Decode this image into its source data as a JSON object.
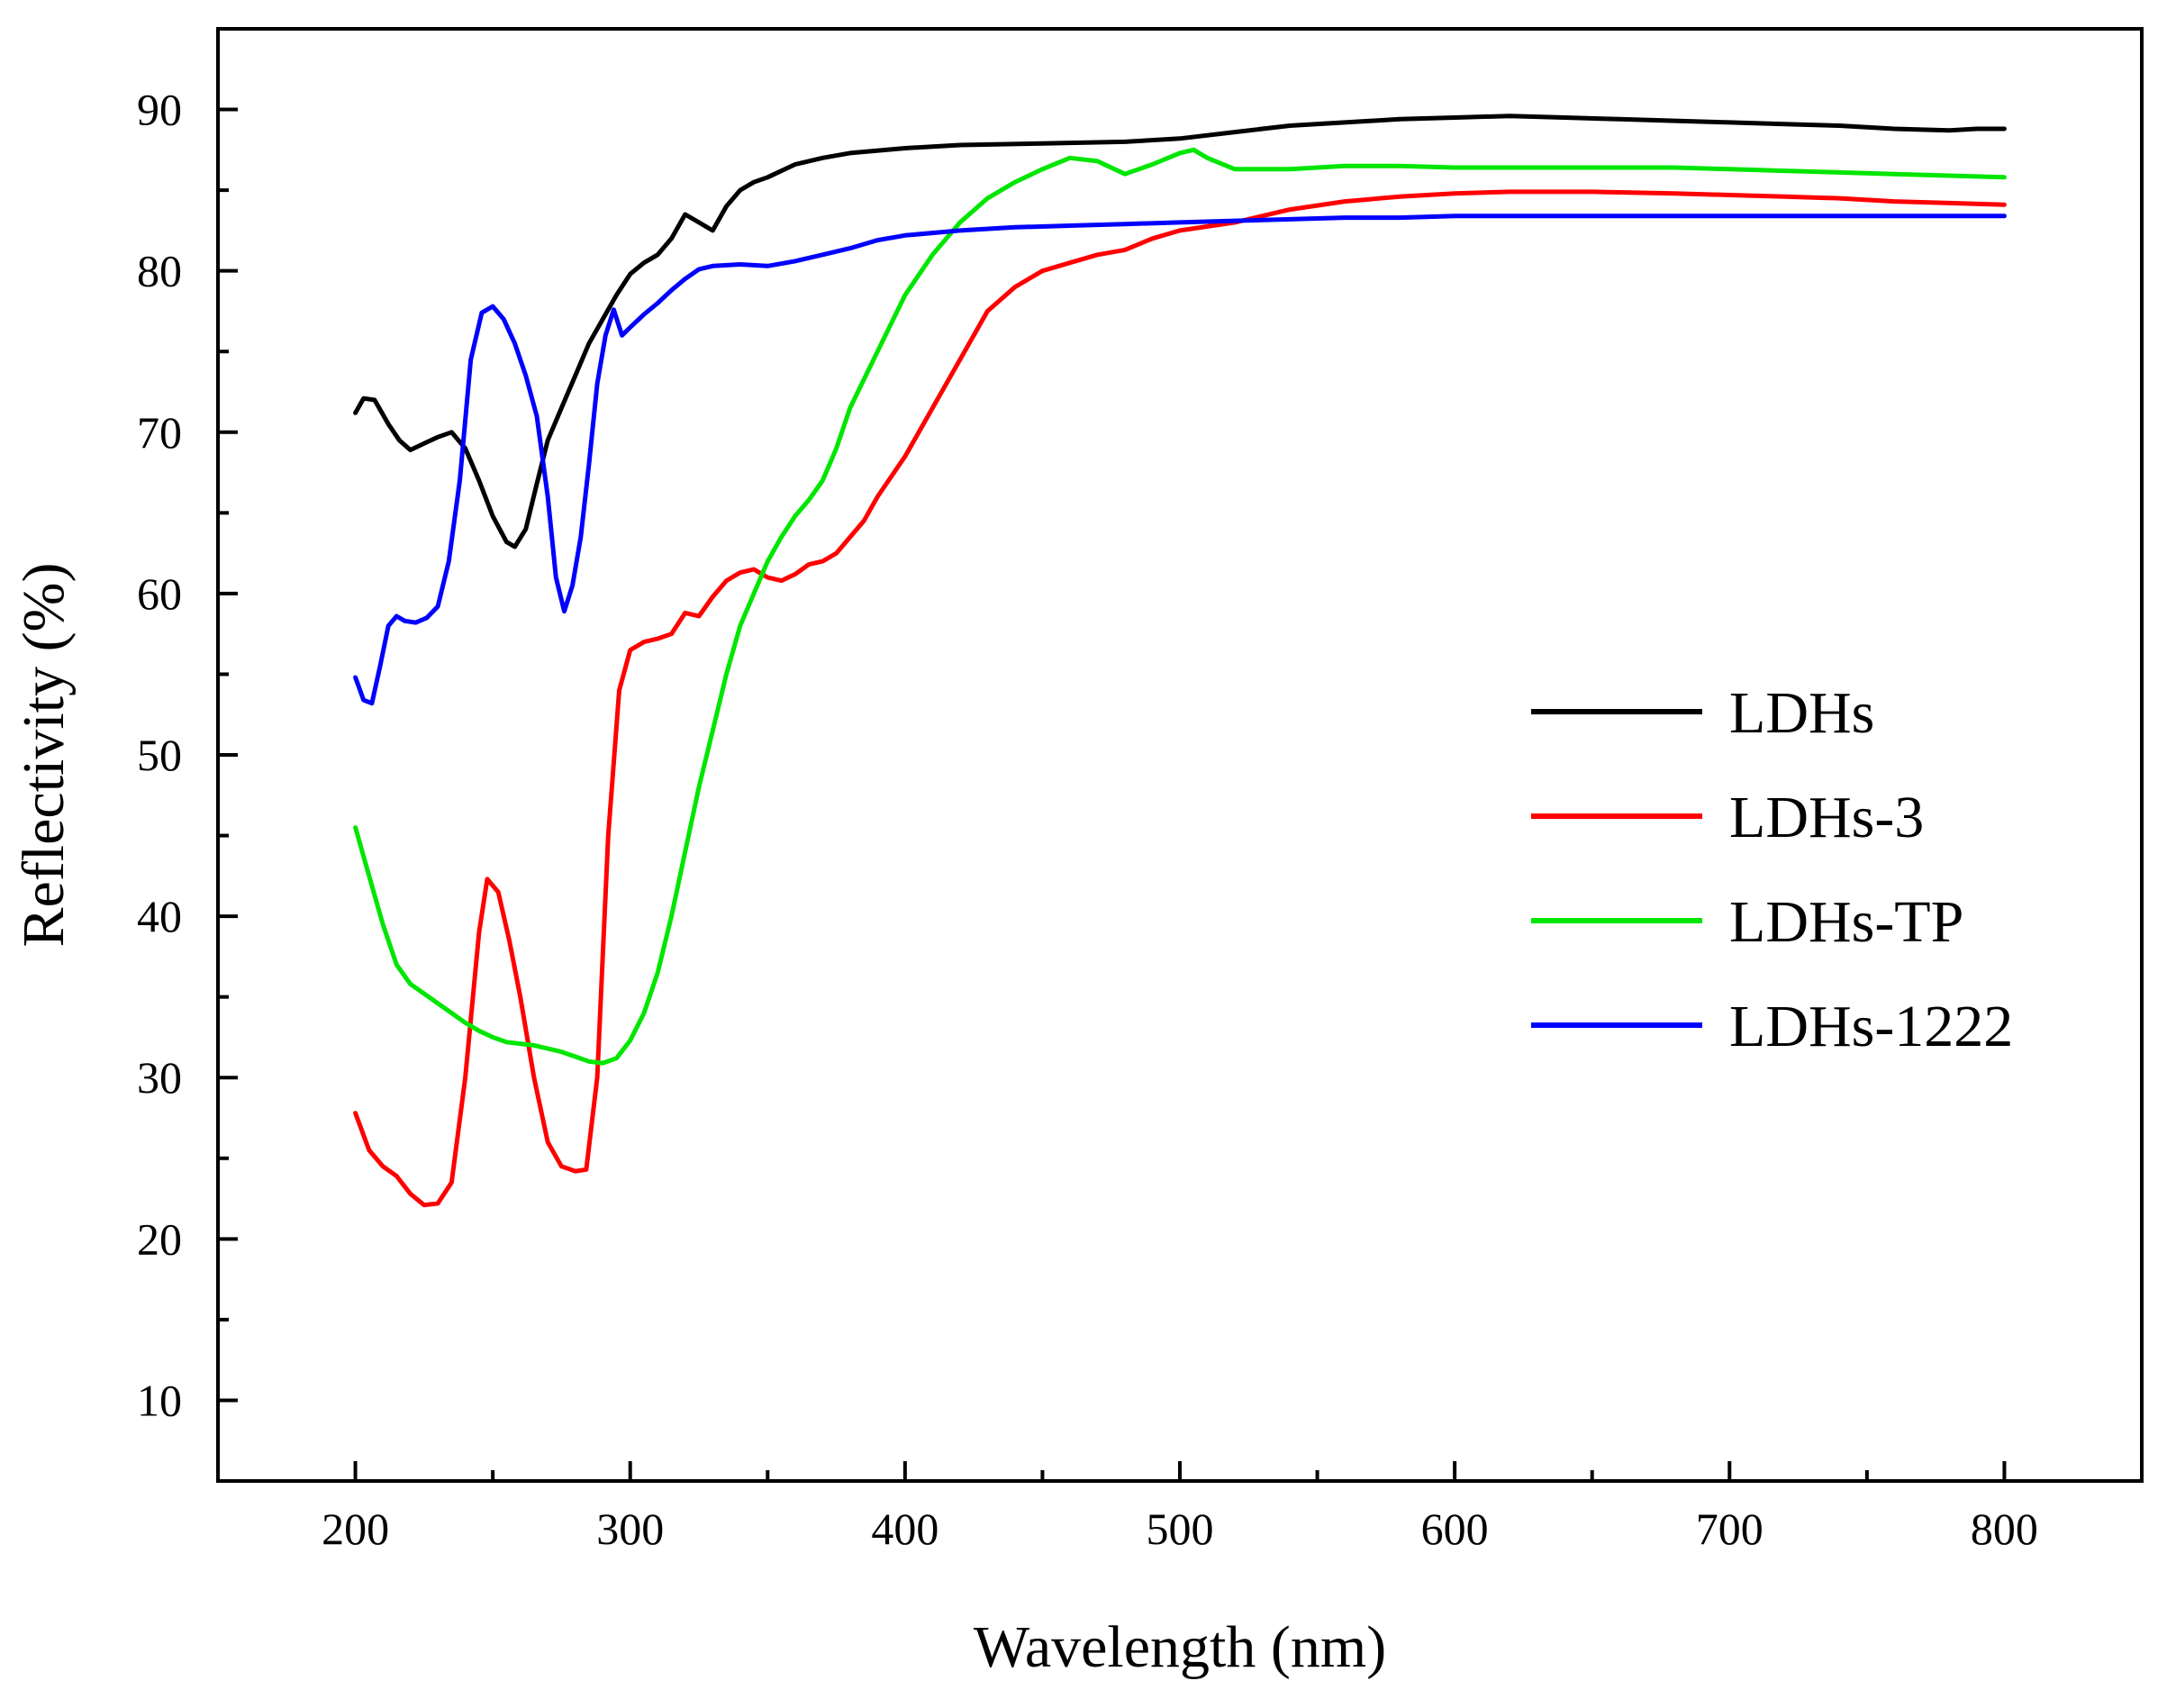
{
  "chart_data": {
    "type": "line",
    "xlabel": "Wavelength (nm)",
    "ylabel": "Reflectivity (%)",
    "xlim": [
      150,
      850
    ],
    "ylim": [
      5,
      95
    ],
    "x_ticks": [
      200,
      300,
      400,
      500,
      600,
      700,
      800
    ],
    "y_ticks": [
      10,
      20,
      30,
      40,
      50,
      60,
      70,
      80,
      90
    ],
    "grid": false,
    "legend_position": "center-right",
    "series": [
      {
        "name": "LDHs",
        "color": "#000000",
        "points": [
          [
            200,
            71.2
          ],
          [
            203,
            72.1
          ],
          [
            207,
            72.0
          ],
          [
            212,
            70.5
          ],
          [
            216,
            69.5
          ],
          [
            220,
            68.9
          ],
          [
            225,
            69.3
          ],
          [
            230,
            69.7
          ],
          [
            235,
            70.0
          ],
          [
            240,
            69.0
          ],
          [
            245,
            67.0
          ],
          [
            250,
            64.8
          ],
          [
            255,
            63.2
          ],
          [
            258,
            62.9
          ],
          [
            262,
            64.0
          ],
          [
            266,
            66.8
          ],
          [
            270,
            69.5
          ],
          [
            275,
            71.5
          ],
          [
            280,
            73.5
          ],
          [
            285,
            75.5
          ],
          [
            290,
            77.0
          ],
          [
            295,
            78.5
          ],
          [
            300,
            79.8
          ],
          [
            305,
            80.5
          ],
          [
            310,
            81.0
          ],
          [
            315,
            82.0
          ],
          [
            320,
            83.5
          ],
          [
            325,
            83.0
          ],
          [
            330,
            82.5
          ],
          [
            335,
            84.0
          ],
          [
            340,
            85.0
          ],
          [
            345,
            85.5
          ],
          [
            350,
            85.8
          ],
          [
            360,
            86.6
          ],
          [
            370,
            87.0
          ],
          [
            380,
            87.3
          ],
          [
            400,
            87.6
          ],
          [
            420,
            87.8
          ],
          [
            450,
            87.9
          ],
          [
            480,
            88.0
          ],
          [
            500,
            88.2
          ],
          [
            520,
            88.6
          ],
          [
            540,
            89.0
          ],
          [
            560,
            89.2
          ],
          [
            580,
            89.4
          ],
          [
            600,
            89.5
          ],
          [
            620,
            89.6
          ],
          [
            640,
            89.5
          ],
          [
            660,
            89.4
          ],
          [
            680,
            89.3
          ],
          [
            700,
            89.2
          ],
          [
            720,
            89.1
          ],
          [
            740,
            89.0
          ],
          [
            760,
            88.8
          ],
          [
            780,
            88.7
          ],
          [
            790,
            88.8
          ],
          [
            800,
            88.8
          ]
        ]
      },
      {
        "name": "LDHs-3",
        "color": "#ff0000",
        "points": [
          [
            200,
            27.8
          ],
          [
            205,
            25.5
          ],
          [
            210,
            24.5
          ],
          [
            215,
            23.9
          ],
          [
            220,
            22.8
          ],
          [
            225,
            22.1
          ],
          [
            230,
            22.2
          ],
          [
            235,
            23.5
          ],
          [
            240,
            30.0
          ],
          [
            245,
            39.0
          ],
          [
            248,
            42.3
          ],
          [
            252,
            41.5
          ],
          [
            256,
            38.5
          ],
          [
            260,
            35.0
          ],
          [
            265,
            30.0
          ],
          [
            270,
            26.0
          ],
          [
            275,
            24.5
          ],
          [
            280,
            24.2
          ],
          [
            284,
            24.3
          ],
          [
            288,
            30.0
          ],
          [
            292,
            45.0
          ],
          [
            296,
            54.0
          ],
          [
            300,
            56.5
          ],
          [
            305,
            57.0
          ],
          [
            310,
            57.2
          ],
          [
            315,
            57.5
          ],
          [
            320,
            58.8
          ],
          [
            325,
            58.6
          ],
          [
            330,
            59.8
          ],
          [
            335,
            60.8
          ],
          [
            340,
            61.3
          ],
          [
            345,
            61.5
          ],
          [
            350,
            61.0
          ],
          [
            355,
            60.8
          ],
          [
            360,
            61.2
          ],
          [
            365,
            61.8
          ],
          [
            370,
            62.0
          ],
          [
            375,
            62.5
          ],
          [
            380,
            63.5
          ],
          [
            385,
            64.5
          ],
          [
            390,
            66.0
          ],
          [
            400,
            68.5
          ],
          [
            410,
            71.5
          ],
          [
            420,
            74.5
          ],
          [
            430,
            77.5
          ],
          [
            440,
            79.0
          ],
          [
            450,
            80.0
          ],
          [
            460,
            80.5
          ],
          [
            470,
            81.0
          ],
          [
            480,
            81.3
          ],
          [
            490,
            82.0
          ],
          [
            500,
            82.5
          ],
          [
            520,
            83.0
          ],
          [
            540,
            83.8
          ],
          [
            560,
            84.3
          ],
          [
            580,
            84.6
          ],
          [
            600,
            84.8
          ],
          [
            620,
            84.9
          ],
          [
            650,
            84.9
          ],
          [
            680,
            84.8
          ],
          [
            700,
            84.7
          ],
          [
            720,
            84.6
          ],
          [
            740,
            84.5
          ],
          [
            760,
            84.3
          ],
          [
            780,
            84.2
          ],
          [
            800,
            84.1
          ]
        ]
      },
      {
        "name": "LDHs-TP",
        "color": "#00e600",
        "points": [
          [
            200,
            45.5
          ],
          [
            205,
            42.5
          ],
          [
            210,
            39.5
          ],
          [
            215,
            37.0
          ],
          [
            220,
            35.8
          ],
          [
            225,
            35.2
          ],
          [
            230,
            34.6
          ],
          [
            235,
            34.0
          ],
          [
            240,
            33.4
          ],
          [
            245,
            32.9
          ],
          [
            250,
            32.5
          ],
          [
            255,
            32.2
          ],
          [
            260,
            32.1
          ],
          [
            265,
            32.0
          ],
          [
            270,
            31.8
          ],
          [
            275,
            31.6
          ],
          [
            280,
            31.3
          ],
          [
            285,
            31.0
          ],
          [
            290,
            30.9
          ],
          [
            295,
            31.2
          ],
          [
            300,
            32.3
          ],
          [
            305,
            34.0
          ],
          [
            310,
            36.5
          ],
          [
            315,
            40.0
          ],
          [
            320,
            44.0
          ],
          [
            325,
            48.0
          ],
          [
            330,
            51.5
          ],
          [
            335,
            55.0
          ],
          [
            340,
            58.0
          ],
          [
            345,
            60.0
          ],
          [
            350,
            62.0
          ],
          [
            355,
            63.5
          ],
          [
            360,
            64.8
          ],
          [
            365,
            65.8
          ],
          [
            370,
            67.0
          ],
          [
            375,
            69.0
          ],
          [
            380,
            71.5
          ],
          [
            390,
            75.0
          ],
          [
            400,
            78.5
          ],
          [
            410,
            81.0
          ],
          [
            420,
            83.0
          ],
          [
            430,
            84.5
          ],
          [
            440,
            85.5
          ],
          [
            450,
            86.3
          ],
          [
            460,
            87.0
          ],
          [
            470,
            86.8
          ],
          [
            480,
            86.0
          ],
          [
            490,
            86.6
          ],
          [
            500,
            87.3
          ],
          [
            505,
            87.5
          ],
          [
            510,
            87.0
          ],
          [
            520,
            86.3
          ],
          [
            540,
            86.3
          ],
          [
            560,
            86.5
          ],
          [
            580,
            86.5
          ],
          [
            600,
            86.4
          ],
          [
            620,
            86.4
          ],
          [
            650,
            86.4
          ],
          [
            680,
            86.4
          ],
          [
            700,
            86.3
          ],
          [
            720,
            86.2
          ],
          [
            740,
            86.1
          ],
          [
            760,
            86.0
          ],
          [
            780,
            85.9
          ],
          [
            800,
            85.8
          ]
        ]
      },
      {
        "name": "LDHs-1222",
        "color": "#0000ff",
        "points": [
          [
            200,
            54.8
          ],
          [
            203,
            53.4
          ],
          [
            206,
            53.2
          ],
          [
            209,
            55.5
          ],
          [
            212,
            58.0
          ],
          [
            215,
            58.6
          ],
          [
            218,
            58.3
          ],
          [
            222,
            58.2
          ],
          [
            226,
            58.5
          ],
          [
            230,
            59.2
          ],
          [
            234,
            62.0
          ],
          [
            238,
            67.0
          ],
          [
            242,
            74.5
          ],
          [
            246,
            77.4
          ],
          [
            250,
            77.8
          ],
          [
            254,
            77.0
          ],
          [
            258,
            75.5
          ],
          [
            262,
            73.5
          ],
          [
            266,
            71.0
          ],
          [
            270,
            66.0
          ],
          [
            273,
            61.0
          ],
          [
            276,
            58.9
          ],
          [
            279,
            60.5
          ],
          [
            282,
            63.5
          ],
          [
            285,
            68.0
          ],
          [
            288,
            73.0
          ],
          [
            291,
            76.0
          ],
          [
            294,
            77.6
          ],
          [
            297,
            76.0
          ],
          [
            300,
            76.5
          ],
          [
            305,
            77.3
          ],
          [
            310,
            78.0
          ],
          [
            315,
            78.8
          ],
          [
            320,
            79.5
          ],
          [
            325,
            80.1
          ],
          [
            330,
            80.3
          ],
          [
            340,
            80.4
          ],
          [
            350,
            80.3
          ],
          [
            360,
            80.6
          ],
          [
            370,
            81.0
          ],
          [
            380,
            81.4
          ],
          [
            390,
            81.9
          ],
          [
            400,
            82.2
          ],
          [
            420,
            82.5
          ],
          [
            440,
            82.7
          ],
          [
            460,
            82.8
          ],
          [
            480,
            82.9
          ],
          [
            500,
            83.0
          ],
          [
            520,
            83.1
          ],
          [
            540,
            83.2
          ],
          [
            560,
            83.3
          ],
          [
            580,
            83.3
          ],
          [
            600,
            83.4
          ],
          [
            650,
            83.4
          ],
          [
            700,
            83.4
          ],
          [
            750,
            83.4
          ],
          [
            800,
            83.4
          ]
        ]
      }
    ]
  }
}
